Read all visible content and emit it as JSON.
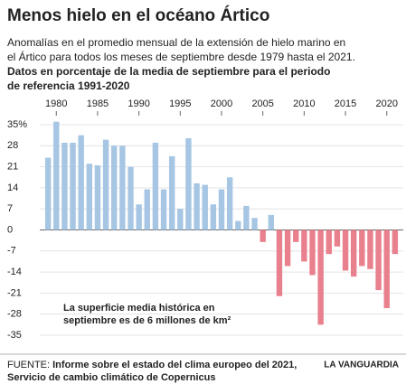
{
  "chart_data": {
    "type": "bar",
    "title": "Menos hielo en el océano Ártico",
    "subtitle": [
      "Anomalías en el promedio mensual de la extensión de hielo marino en",
      "el Ártico para todos los meses de septiembre desde 1979 hasta el 2021."
    ],
    "subtitle_bold": [
      "Datos en porcentaje de la media de septiembre para el periodo",
      "de referencia 1991-2020"
    ],
    "annotation": [
      "La superficie media histórica en",
      "septiembre es de 6 millones de km²"
    ],
    "source_label": "FUENTE:",
    "source": [
      "Informe sobre el estado del clima europeo del 2021,",
      "Servicio de cambio climático de Copernicus"
    ],
    "brand": "LA VANGUARDIA",
    "x": [
      1979,
      1980,
      1981,
      1982,
      1983,
      1984,
      1985,
      1986,
      1987,
      1988,
      1989,
      1990,
      1991,
      1992,
      1993,
      1994,
      1995,
      1996,
      1997,
      1998,
      1999,
      2000,
      2001,
      2002,
      2003,
      2004,
      2005,
      2006,
      2007,
      2008,
      2009,
      2010,
      2011,
      2012,
      2013,
      2014,
      2015,
      2016,
      2017,
      2018,
      2019,
      2020,
      2021
    ],
    "values": [
      24,
      36,
      29,
      29,
      31.5,
      22,
      21.5,
      30,
      28,
      28,
      21,
      8.5,
      13.5,
      29,
      13.5,
      24.5,
      7,
      30.5,
      15.5,
      15,
      8.5,
      13.5,
      17.5,
      3,
      8,
      4,
      -4,
      5,
      -22,
      -12,
      -4,
      -10.5,
      -15,
      -31.5,
      -8,
      -5.5,
      -13.5,
      -15.5,
      -12,
      -13,
      -20,
      -26,
      -8
    ],
    "xlim": [
      1978,
      2022
    ],
    "xticks": [
      1980,
      1985,
      1990,
      1995,
      2000,
      2005,
      2010,
      2015,
      2020
    ],
    "ylim": [
      -35,
      35
    ],
    "yticks": [
      {
        "value": 35,
        "label": "35%"
      },
      28,
      21,
      14,
      7,
      0,
      -7,
      -14,
      -21,
      -28,
      -35
    ],
    "grid": true,
    "colors": {
      "positive": "#a6c6e4",
      "negative": "#e9808d"
    }
  }
}
